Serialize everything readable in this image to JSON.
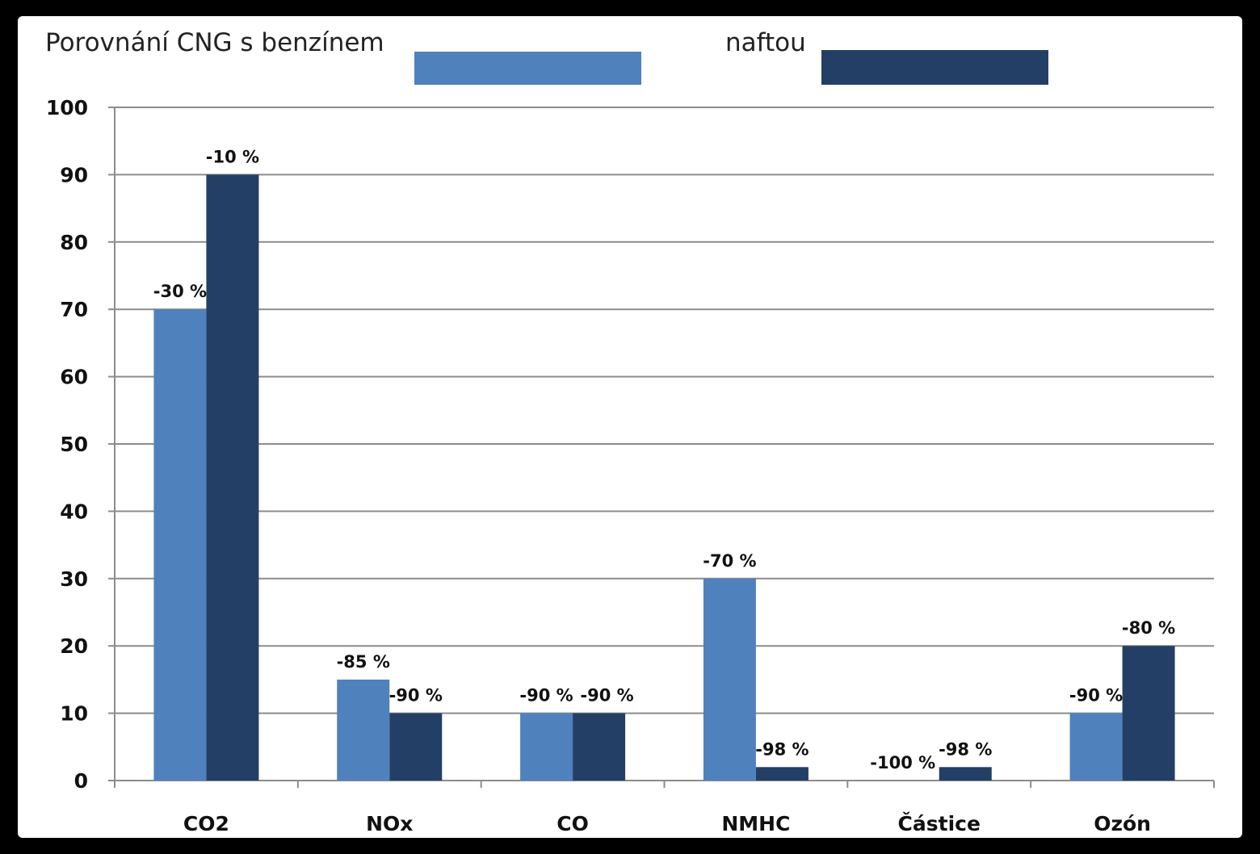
{
  "chart_data": {
    "type": "bar",
    "title_left": "Porovnání CNG s benzínem",
    "title_right": "naftou",
    "categories": [
      "CO2",
      "NOx",
      "CO",
      "NMHC",
      "Částice",
      "Ozón"
    ],
    "series": [
      {
        "name": "benzínem",
        "color": "#4F81BD",
        "values": [
          70,
          15,
          10,
          30,
          0,
          10
        ],
        "labels": [
          "-30 %",
          "-85 %",
          "-90 %",
          "-70 %",
          "-100 %",
          "-90 %"
        ]
      },
      {
        "name": "naftou",
        "color": "#243F66",
        "values": [
          90,
          10,
          10,
          2,
          2,
          20
        ],
        "labels": [
          "-10 %",
          "-90 %",
          "-90 %",
          "-98 %",
          "-98 %",
          "-80 %"
        ]
      }
    ],
    "ylim": [
      0,
      100
    ],
    "yticks": [
      "0",
      "10",
      "20",
      "30",
      "40",
      "50",
      "60",
      "70",
      "80",
      "90",
      "100"
    ],
    "grid": true,
    "legend": "top"
  }
}
